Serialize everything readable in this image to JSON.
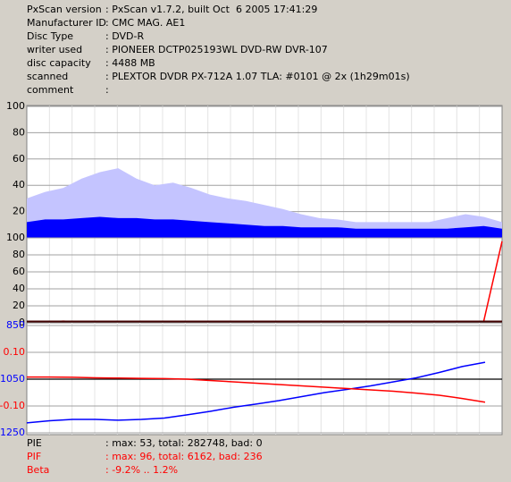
{
  "header": {
    "rows": [
      {
        "label": "PxScan version",
        "value": ": PxScan v1.7.2, built Oct  6 2005 17:41:29"
      },
      {
        "label": "Manufacturer ID",
        "value": ": CMC MAG. AE1"
      },
      {
        "label": "Disc Type",
        "value": ": DVD-R"
      },
      {
        "label": "writer used",
        "value": ": PIONEER DCTP025193WL DVD-RW DVR-107"
      },
      {
        "label": "disc capacity",
        "value": ": 4488 MB"
      },
      {
        "label": "scanned",
        "value": ": PLEXTOR DVDR PX-712A 1.07 TLA: #0101 @ 2x (1h29m01s)"
      },
      {
        "label": "comment",
        "value": ":"
      }
    ]
  },
  "chart_data": [
    {
      "type": "area",
      "ylim": [
        0,
        100
      ],
      "yticks": [
        100,
        80,
        60,
        40,
        20
      ],
      "series": [
        {
          "color": "#c4c4ff",
          "values": [
            30,
            35,
            38,
            45,
            50,
            53,
            45,
            40,
            42,
            38,
            33,
            30,
            28,
            25,
            22,
            18,
            15,
            14,
            12,
            12,
            12,
            12,
            12,
            15,
            18,
            16,
            12
          ]
        },
        {
          "color": "#0000ff",
          "values": [
            12,
            14,
            14,
            15,
            16,
            15,
            15,
            14,
            14,
            13,
            12,
            11,
            10,
            9,
            9,
            8,
            8,
            8,
            7,
            7,
            7,
            7,
            7,
            7,
            8,
            9,
            7
          ]
        }
      ]
    },
    {
      "type": "line",
      "ylim": [
        0,
        100
      ],
      "yticks": [
        100,
        80,
        60,
        40,
        20,
        0
      ],
      "series": [
        {
          "color": "#ff0000",
          "values": [
            1,
            1,
            2,
            1,
            1,
            1,
            1,
            1,
            1,
            1,
            1,
            1,
            1,
            1,
            1,
            1,
            1,
            1,
            1,
            1,
            1,
            1,
            1,
            1,
            1,
            2,
            96
          ]
        }
      ]
    },
    {
      "type": "line",
      "ylim": [
        1250,
        850
      ],
      "yticks": [
        850,
        1050,
        1250
      ],
      "tick_color": "#0000ff",
      "y2lim": [
        -0.2,
        0.2
      ],
      "y2ticks": [
        {
          "value": 0.1,
          "label": "0.10"
        },
        {
          "value": -0.1,
          "label": "-0.10"
        }
      ],
      "y2tick_color": "#ff0000",
      "series": [
        {
          "color": "#0000ff",
          "values": [
            1213,
            1205,
            1200,
            1200,
            1203,
            1200,
            1195,
            1183,
            1170,
            1155,
            1143,
            1130,
            1115,
            1100,
            1088,
            1075,
            1060,
            1045,
            1025,
            1003,
            987
          ]
        },
        {
          "color": "#ff0000",
          "axis": "y2",
          "values": [
            0.008,
            0.008,
            0.007,
            0.005,
            0.004,
            0.003,
            0.002,
            0,
            -0.005,
            -0.01,
            -0.015,
            -0.02,
            -0.025,
            -0.03,
            -0.035,
            -0.04,
            -0.045,
            -0.052,
            -0.06,
            -0.072,
            -0.086
          ]
        }
      ]
    }
  ],
  "footer": {
    "rows": [
      {
        "label": "PIE",
        "value": ": max: 53, total: 282748, bad: 0",
        "color": "#000000"
      },
      {
        "label": "PIF",
        "value": ": max: 96, total: 6162, bad: 236",
        "color": "#ff0000"
      },
      {
        "label": "Beta",
        "value": ": -9.2% .. 1.2%",
        "color": "#ff0000"
      }
    ]
  }
}
